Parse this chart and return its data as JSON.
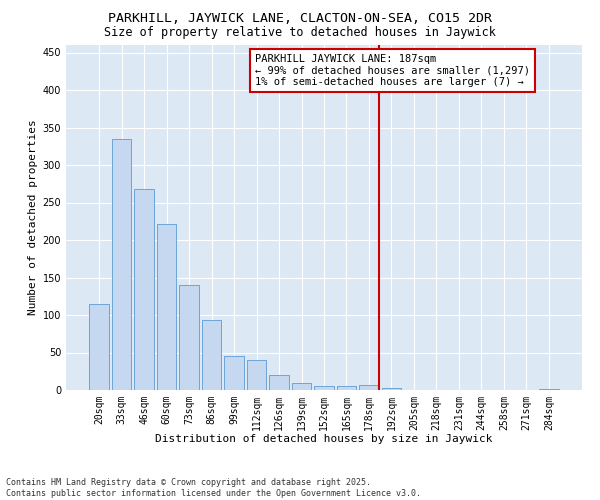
{
  "title1": "PARKHILL, JAYWICK LANE, CLACTON-ON-SEA, CO15 2DR",
  "title2": "Size of property relative to detached houses in Jaywick",
  "xlabel": "Distribution of detached houses by size in Jaywick",
  "ylabel": "Number of detached properties",
  "categories": [
    "20sqm",
    "33sqm",
    "46sqm",
    "60sqm",
    "73sqm",
    "86sqm",
    "99sqm",
    "112sqm",
    "126sqm",
    "139sqm",
    "152sqm",
    "165sqm",
    "178sqm",
    "192sqm",
    "205sqm",
    "218sqm",
    "231sqm",
    "244sqm",
    "258sqm",
    "271sqm",
    "284sqm"
  ],
  "values": [
    115,
    335,
    268,
    222,
    140,
    93,
    45,
    40,
    20,
    10,
    6,
    5,
    7,
    3,
    0,
    0,
    0,
    0,
    0,
    0,
    2
  ],
  "bar_color": "#c5d8f0",
  "bar_edge_color": "#5b9bd5",
  "annotation_title": "PARKHILL JAYWICK LANE: 187sqm",
  "annotation_line1": "← 99% of detached houses are smaller (1,297)",
  "annotation_line2": "1% of semi-detached houses are larger (7) →",
  "annotation_box_color": "#ffffff",
  "annotation_box_edge": "#cc0000",
  "ref_line_color": "#cc0000",
  "ylim": [
    0,
    460
  ],
  "yticks": [
    0,
    50,
    100,
    150,
    200,
    250,
    300,
    350,
    400,
    450
  ],
  "background_color": "#dde8f5",
  "footer": "Contains HM Land Registry data © Crown copyright and database right 2025.\nContains public sector information licensed under the Open Government Licence v3.0.",
  "title1_fontsize": 9.5,
  "title2_fontsize": 8.5,
  "xlabel_fontsize": 8,
  "ylabel_fontsize": 8,
  "tick_fontsize": 7,
  "annotation_fontsize": 7.5,
  "footer_fontsize": 6
}
